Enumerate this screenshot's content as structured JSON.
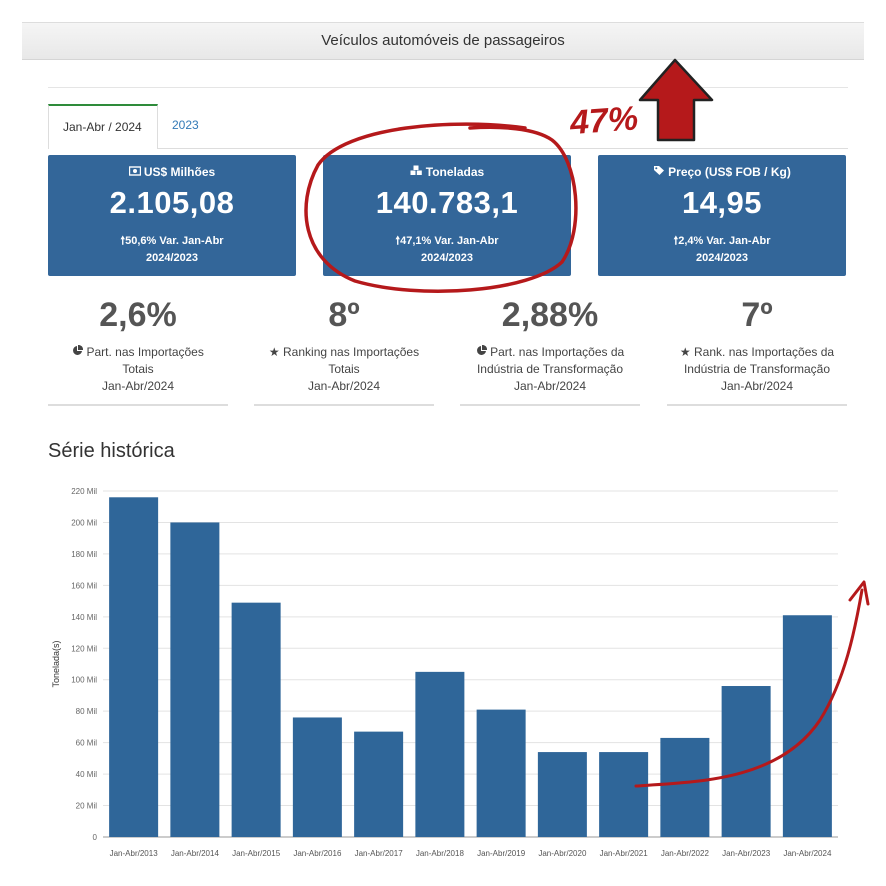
{
  "header": {
    "title": "Veículos automóveis de passageiros"
  },
  "tabs": [
    {
      "label": "Jan-Abr / 2024",
      "active": true
    },
    {
      "label": "2023",
      "active": false
    }
  ],
  "kpis": [
    {
      "icon": "money-icon",
      "label": "US$ Milhões",
      "value": "2.105,08",
      "variation": "50,6% Var. Jan-Abr",
      "period": "2024/2023"
    },
    {
      "icon": "cubes-icon",
      "label": "Toneladas",
      "value": "140.783,1",
      "variation": "47,1% Var. Jan-Abr",
      "period": "2024/2023"
    },
    {
      "icon": "tag-icon",
      "label": "Preço (US$ FOB / Kg)",
      "value": "14,95",
      "variation": "2,4% Var. Jan-Abr",
      "period": "2024/2023"
    }
  ],
  "stats": [
    {
      "icon": "pie-chart-icon",
      "value": "2,6%",
      "line1": "Part. nas Importações",
      "line2": "Totais",
      "line3": "Jan-Abr/2024"
    },
    {
      "icon": "star-icon",
      "value": "8º",
      "line1": "Ranking nas Importações",
      "line2": "Totais",
      "line3": "Jan-Abr/2024"
    },
    {
      "icon": "pie-chart-icon",
      "value": "2,88%",
      "line1": "Part. nas Importações da",
      "line2": "Indústria de Transformação",
      "line3": "Jan-Abr/2024"
    },
    {
      "icon": "star-icon",
      "value": "7º",
      "line1": "Rank. nas Importações da",
      "line2": "Indústria de Transformação",
      "line3": "Jan-Abr/2024"
    }
  ],
  "section": {
    "title": "Série histórica"
  },
  "annotation": {
    "text": "47%"
  },
  "colors": {
    "primary": "#336699",
    "bar": "#2f6699",
    "annotation": "#b5191b",
    "tab_accent": "#2e8b3a"
  },
  "chart_data": {
    "type": "bar",
    "ylabel": "Tonelada(s)",
    "ylim": [
      0,
      220000
    ],
    "yticks": [
      0,
      20000,
      40000,
      60000,
      80000,
      100000,
      120000,
      140000,
      160000,
      180000,
      200000,
      220000
    ],
    "ytick_labels": [
      "0",
      "20 Mil",
      "40 Mil",
      "60 Mil",
      "80 Mil",
      "100 Mil",
      "120 Mil",
      "140 Mil",
      "160 Mil",
      "180 Mil",
      "200 Mil",
      "220 Mil"
    ],
    "categories": [
      "Jan-Abr/2013",
      "Jan-Abr/2014",
      "Jan-Abr/2015",
      "Jan-Abr/2016",
      "Jan-Abr/2017",
      "Jan-Abr/2018",
      "Jan-Abr/2019",
      "Jan-Abr/2020",
      "Jan-Abr/2021",
      "Jan-Abr/2022",
      "Jan-Abr/2023",
      "Jan-Abr/2024"
    ],
    "values": [
      216000,
      200000,
      149000,
      76000,
      67000,
      105000,
      81000,
      54000,
      54000,
      63000,
      96000,
      141000
    ],
    "grid": true
  }
}
